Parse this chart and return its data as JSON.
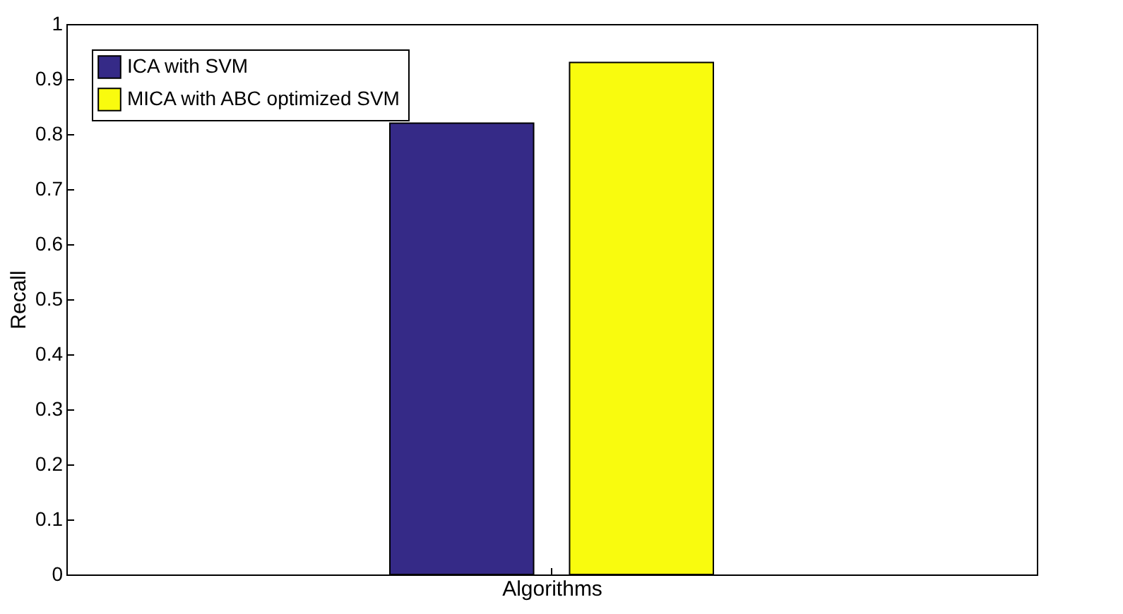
{
  "chart_data": {
    "type": "bar",
    "xlabel": "Algorithms",
    "ylabel": "Recall",
    "categories": [
      null
    ],
    "series": [
      {
        "name": "ICA with SVM",
        "color": "#352a87",
        "values": [
          0.82
        ]
      },
      {
        "name": "MICA with ABC optimized SVM",
        "color": "#f9fb0e",
        "values": [
          0.93
        ]
      }
    ],
    "ylim": [
      0,
      1
    ],
    "yticks": [
      0,
      0.1,
      0.2,
      0.3,
      0.4,
      0.5,
      0.6,
      0.7,
      0.8,
      0.9,
      1
    ],
    "grid": false,
    "legend": "top left"
  }
}
